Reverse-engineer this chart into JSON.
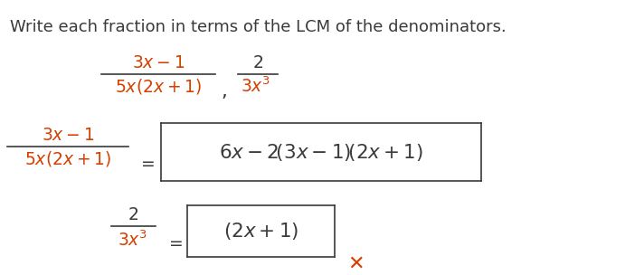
{
  "bg": "#ffffff",
  "red": "#d44000",
  "blk": "#3a3a3a",
  "title": "Write each fraction in terms of the LCM of the denominators.",
  "title_fs": 13.0,
  "math_fs": 13.5,
  "math_fs_lg": 15.5
}
